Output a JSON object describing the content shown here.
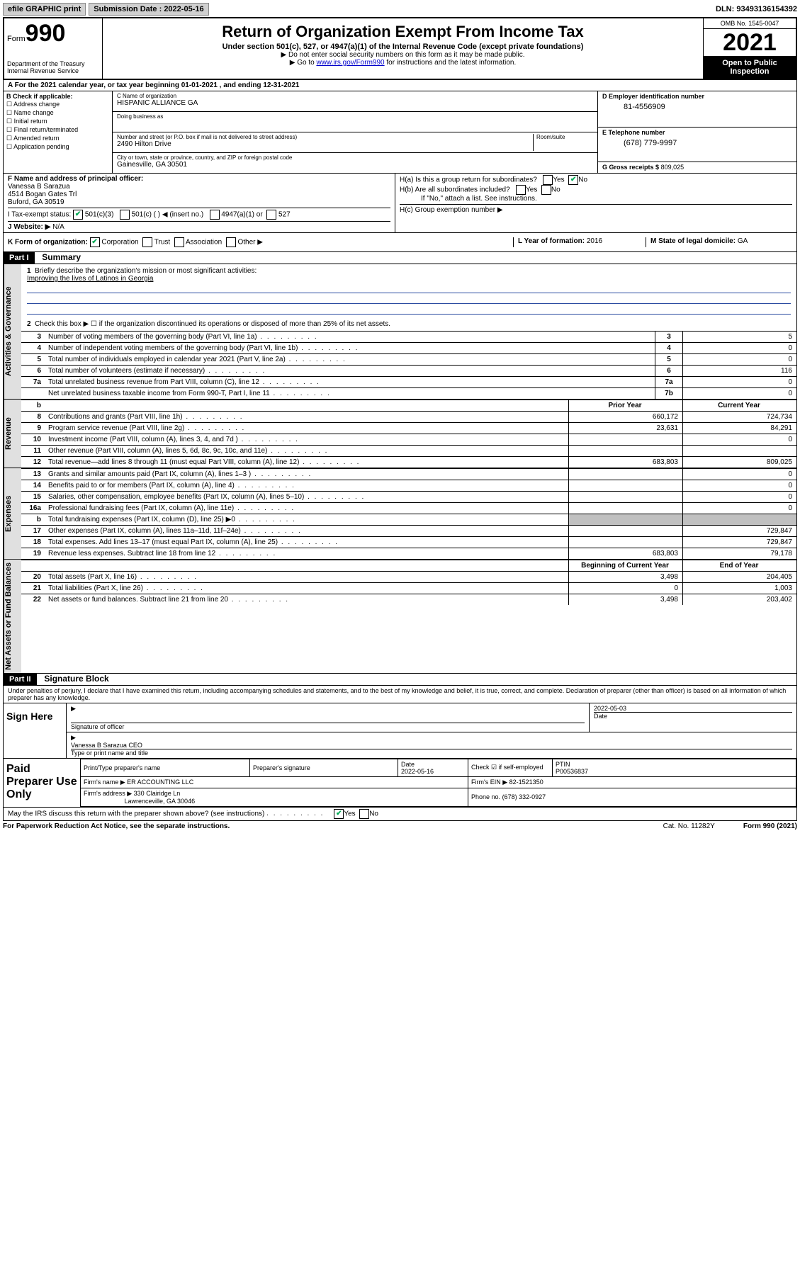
{
  "topbar": {
    "efile_label": "efile GRAPHIC print",
    "submission_label": "Submission Date : 2022-05-16",
    "dln_label": "DLN: 93493136154392"
  },
  "header": {
    "form_prefix": "Form",
    "form_number": "990",
    "dept": "Department of the Treasury Internal Revenue Service",
    "title": "Return of Organization Exempt From Income Tax",
    "subtitle": "Under section 501(c), 527, or 4947(a)(1) of the Internal Revenue Code (except private foundations)",
    "note1": "▶ Do not enter social security numbers on this form as it may be made public.",
    "note2_pre": "▶ Go to ",
    "note2_link": "www.irs.gov/Form990",
    "note2_post": " for instructions and the latest information.",
    "omb": "OMB No. 1545-0047",
    "year": "2021",
    "open_public": "Open to Public Inspection"
  },
  "secA": {
    "text": "A For the 2021 calendar year, or tax year beginning 01-01-2021   , and ending 12-31-2021"
  },
  "secB": {
    "hdr": "B Check if applicable:",
    "opts": [
      "Address change",
      "Name change",
      "Initial return",
      "Final return/terminated",
      "Amended return",
      "Application pending"
    ]
  },
  "secC": {
    "name_lbl": "C Name of organization",
    "name": "HISPANIC ALLIANCE GA",
    "dba_lbl": "Doing business as",
    "addr_lbl": "Number and street (or P.O. box if mail is not delivered to street address)",
    "room_lbl": "Room/suite",
    "addr": "2490 Hilton Drive",
    "city_lbl": "City or town, state or province, country, and ZIP or foreign postal code",
    "city": "Gainesville, GA  30501"
  },
  "secD": {
    "ein_lbl": "D Employer identification number",
    "ein": "81-4556909",
    "phone_lbl": "E Telephone number",
    "phone": "(678) 779-9997",
    "gross_lbl": "G Gross receipts $",
    "gross": "809,025"
  },
  "secF": {
    "lbl": "F Name and address of principal officer:",
    "name": "Vanessa B Sarazua",
    "addr1": "4514 Bogan Gates Trl",
    "addr2": "Buford, GA  30519"
  },
  "secH": {
    "a": "H(a)  Is this a group return for subordinates?",
    "b": "H(b)  Are all subordinates included?",
    "note": "If \"No,\" attach a list. See instructions.",
    "c": "H(c)  Group exemption number ▶",
    "yes": "Yes",
    "no": "No"
  },
  "secI": {
    "lbl": "I   Tax-exempt status:",
    "o1": "501(c)(3)",
    "o2": "501(c) (  ) ◀ (insert no.)",
    "o3": "4947(a)(1) or",
    "o4": "527"
  },
  "secJ": {
    "lbl": "J   Website: ▶",
    "val": "N/A"
  },
  "secK": {
    "lbl": "K Form of organization:",
    "o1": "Corporation",
    "o2": "Trust",
    "o3": "Association",
    "o4": "Other ▶"
  },
  "secL": {
    "lbl": "L Year of formation:",
    "val": "2016"
  },
  "secM": {
    "lbl": "M State of legal domicile:",
    "val": "GA"
  },
  "part1": {
    "hdr": "Part I",
    "title": "Summary",
    "q1": "Briefly describe the organization's mission or most significant activities:",
    "mission": "Improving the lives of Latinos in Georgia",
    "q2": "Check this box ▶ ☐  if the organization discontinued its operations or disposed of more than 25% of its net assets.",
    "side_ag": "Activities & Governance",
    "side_rev": "Revenue",
    "side_exp": "Expenses",
    "side_nab": "Net Assets or Fund Balances",
    "col_prior": "Prior Year",
    "col_curr": "Current Year",
    "col_beg": "Beginning of Current Year",
    "col_end": "End of Year",
    "rows_gov": [
      {
        "n": "3",
        "d": "Number of voting members of the governing body (Part VI, line 1a)",
        "b": "3",
        "v": "5"
      },
      {
        "n": "4",
        "d": "Number of independent voting members of the governing body (Part VI, line 1b)",
        "b": "4",
        "v": "0"
      },
      {
        "n": "5",
        "d": "Total number of individuals employed in calendar year 2021 (Part V, line 2a)",
        "b": "5",
        "v": "0"
      },
      {
        "n": "6",
        "d": "Total number of volunteers (estimate if necessary)",
        "b": "6",
        "v": "116"
      },
      {
        "n": "7a",
        "d": "Total unrelated business revenue from Part VIII, column (C), line 12",
        "b": "7a",
        "v": "0"
      },
      {
        "n": "",
        "d": "Net unrelated business taxable income from Form 990-T, Part I, line 11",
        "b": "7b",
        "v": "0"
      }
    ],
    "rows_rev": [
      {
        "n": "8",
        "d": "Contributions and grants (Part VIII, line 1h)",
        "p": "660,172",
        "c": "724,734"
      },
      {
        "n": "9",
        "d": "Program service revenue (Part VIII, line 2g)",
        "p": "23,631",
        "c": "84,291"
      },
      {
        "n": "10",
        "d": "Investment income (Part VIII, column (A), lines 3, 4, and 7d )",
        "p": "",
        "c": "0"
      },
      {
        "n": "11",
        "d": "Other revenue (Part VIII, column (A), lines 5, 6d, 8c, 9c, 10c, and 11e)",
        "p": "",
        "c": ""
      },
      {
        "n": "12",
        "d": "Total revenue—add lines 8 through 11 (must equal Part VIII, column (A), line 12)",
        "p": "683,803",
        "c": "809,025"
      }
    ],
    "rows_exp": [
      {
        "n": "13",
        "d": "Grants and similar amounts paid (Part IX, column (A), lines 1–3 )",
        "p": "",
        "c": "0"
      },
      {
        "n": "14",
        "d": "Benefits paid to or for members (Part IX, column (A), line 4)",
        "p": "",
        "c": "0"
      },
      {
        "n": "15",
        "d": "Salaries, other compensation, employee benefits (Part IX, column (A), lines 5–10)",
        "p": "",
        "c": "0"
      },
      {
        "n": "16a",
        "d": "Professional fundraising fees (Part IX, column (A), line 11e)",
        "p": "",
        "c": "0"
      },
      {
        "n": "b",
        "d": "Total fundraising expenses (Part IX, column (D), line 25) ▶0",
        "p": "grey",
        "c": "grey"
      },
      {
        "n": "17",
        "d": "Other expenses (Part IX, column (A), lines 11a–11d, 11f–24e)",
        "p": "",
        "c": "729,847"
      },
      {
        "n": "18",
        "d": "Total expenses. Add lines 13–17 (must equal Part IX, column (A), line 25)",
        "p": "",
        "c": "729,847"
      },
      {
        "n": "19",
        "d": "Revenue less expenses. Subtract line 18 from line 12",
        "p": "683,803",
        "c": "79,178"
      }
    ],
    "rows_nab": [
      {
        "n": "20",
        "d": "Total assets (Part X, line 16)",
        "p": "3,498",
        "c": "204,405"
      },
      {
        "n": "21",
        "d": "Total liabilities (Part X, line 26)",
        "p": "0",
        "c": "1,003"
      },
      {
        "n": "22",
        "d": "Net assets or fund balances. Subtract line 21 from line 20",
        "p": "3,498",
        "c": "203,402"
      }
    ]
  },
  "part2": {
    "hdr": "Part II",
    "title": "Signature Block",
    "decl": "Under penalties of perjury, I declare that I have examined this return, including accompanying schedules and statements, and to the best of my knowledge and belief, it is true, correct, and complete. Declaration of preparer (other than officer) is based on all information of which preparer has any knowledge.",
    "sign_here": "Sign Here",
    "sig_officer": "Signature of officer",
    "sig_date": "2022-05-03",
    "date_lbl": "Date",
    "officer_name": "Vanessa B Sarazua CEO",
    "type_name": "Type or print name and title",
    "paid_prep": "Paid Preparer Use Only",
    "pt_name_lbl": "Print/Type preparer's name",
    "prep_sig_lbl": "Preparer's signature",
    "prep_date_lbl": "Date",
    "prep_date": "2022-05-16",
    "check_self": "Check ☑ if self-employed",
    "ptin_lbl": "PTIN",
    "ptin": "P00536837",
    "firm_name_lbl": "Firm's name    ▶",
    "firm_name": "ER ACCOUNTING LLC",
    "firm_ein_lbl": "Firm's EIN ▶",
    "firm_ein": "82-1521350",
    "firm_addr_lbl": "Firm's address ▶",
    "firm_addr1": "330 Clairidge Ln",
    "firm_addr2": "Lawrenceville, GA  30046",
    "firm_phone_lbl": "Phone no.",
    "firm_phone": "(678) 332-0927",
    "may_irs": "May the IRS discuss this return with the preparer shown above? (see instructions)",
    "yes": "Yes",
    "no": "No"
  },
  "footer": {
    "l": "For Paperwork Reduction Act Notice, see the separate instructions.",
    "m": "Cat. No. 11282Y",
    "r": "Form 990 (2021)"
  }
}
